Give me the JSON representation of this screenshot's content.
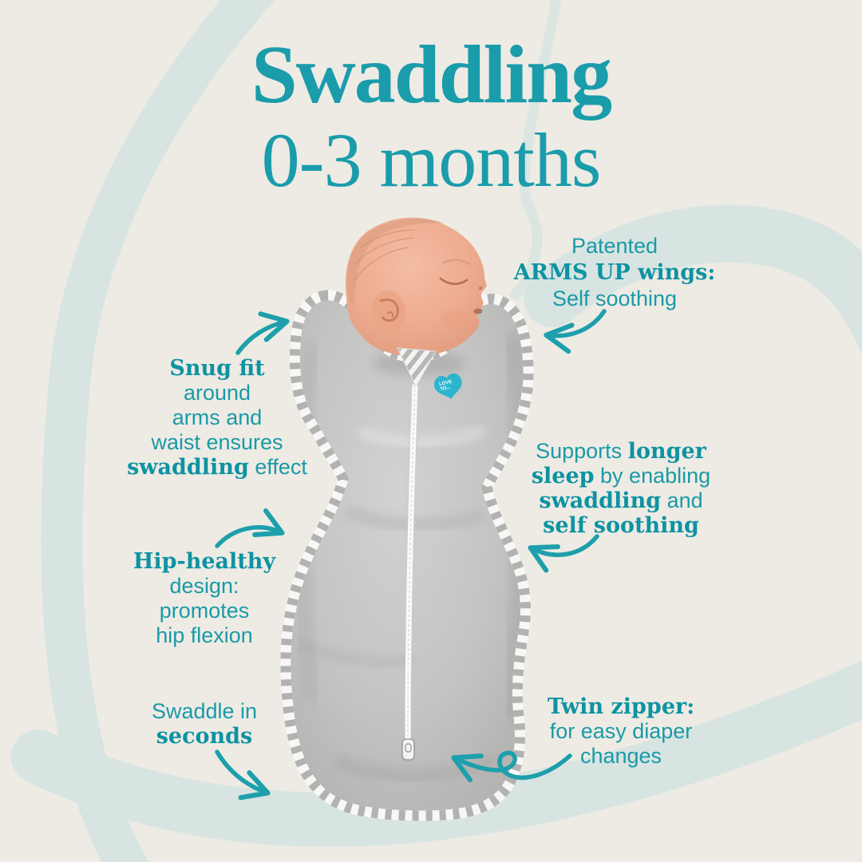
{
  "page": {
    "background_color": "#edebe4",
    "decor_color": "#d7e4e2",
    "accent_color": "#1a9aa7",
    "accent_dark_color": "#0d93a2",
    "arrow_color": "#1d9fac"
  },
  "title": {
    "heading": "Swaddling",
    "subheading": "0-3 months"
  },
  "callouts": {
    "patented": {
      "lines": [
        [
          {
            "t": "Patented",
            "b": false
          }
        ],
        [
          {
            "t": "ARMS UP wings:",
            "b": true
          }
        ],
        [
          {
            "t": "Self soothing",
            "b": false
          }
        ]
      ]
    },
    "snug": {
      "lines": [
        [
          {
            "t": "Snug fit",
            "b": true
          }
        ],
        [
          {
            "t": "around",
            "b": false
          }
        ],
        [
          {
            "t": "arms and",
            "b": false
          }
        ],
        [
          {
            "t": "waist ensures",
            "b": false
          }
        ],
        [
          {
            "t": "swaddling",
            "b": true
          },
          {
            "t": " effect",
            "b": false
          }
        ]
      ]
    },
    "supports": {
      "lines": [
        [
          {
            "t": "Supports ",
            "b": false
          },
          {
            "t": "longer",
            "b": true
          }
        ],
        [
          {
            "t": "sleep",
            "b": true
          },
          {
            "t": " by enabling",
            "b": false
          }
        ],
        [
          {
            "t": "swaddling",
            "b": true
          },
          {
            "t": " and",
            "b": false
          }
        ],
        [
          {
            "t": "self soothing",
            "b": true
          }
        ]
      ]
    },
    "hip": {
      "lines": [
        [
          {
            "t": "Hip-healthy",
            "b": true
          }
        ],
        [
          {
            "t": "design:",
            "b": false
          }
        ],
        [
          {
            "t": "promotes",
            "b": false
          }
        ],
        [
          {
            "t": "hip flexion",
            "b": false
          }
        ]
      ]
    },
    "seconds": {
      "lines": [
        [
          {
            "t": "Swaddle in",
            "b": false
          }
        ],
        [
          {
            "t": "seconds",
            "b": true
          }
        ]
      ]
    },
    "twin": {
      "lines": [
        [
          {
            "t": "Twin zipper:",
            "b": true
          }
        ],
        [
          {
            "t": "for easy diaper",
            "b": false
          }
        ],
        [
          {
            "t": "changes",
            "b": false
          }
        ]
      ]
    }
  },
  "product": {
    "subject": "sleeping newborn in gray marle arms-up swaddle",
    "brand_logo": "love-to-dream-heart",
    "logo_color": "#2db5cd",
    "logo_text": "LOVE TO",
    "fabric_color": "#c6c6c5",
    "trim_style": "gray-white striped binding",
    "zipper_color": "#ffffff"
  }
}
